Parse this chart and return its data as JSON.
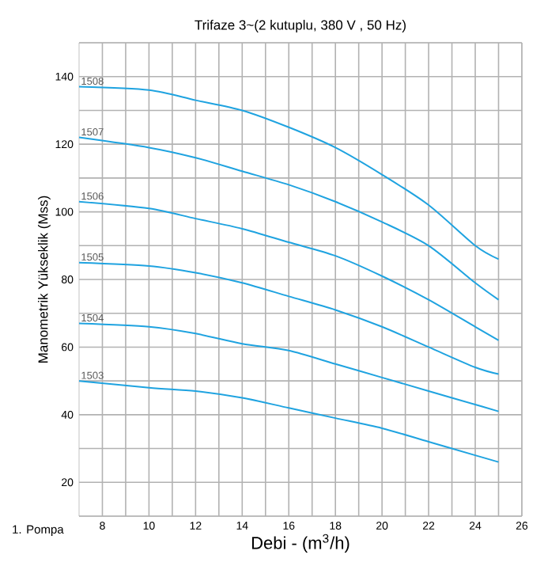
{
  "chart_data": {
    "type": "line",
    "title": "Trifaze 3~(2 kutuplu, 380 V , 50 Hz)",
    "xlabel": "Debi - (m$^{3}$/h)",
    "ylabel": "Manometrik Yükseklik (Mss)",
    "annotations": [
      "1. Pompa"
    ],
    "x": [
      7,
      10,
      12,
      14,
      16,
      18,
      20,
      22,
      24,
      25
    ],
    "series": [
      {
        "name": "1508",
        "color": "#1fa3e0",
        "values": [
          137,
          136,
          133,
          130,
          125,
          119,
          111,
          102,
          90,
          86
        ]
      },
      {
        "name": "1507",
        "color": "#1fa3e0",
        "values": [
          122,
          119,
          116,
          112,
          108,
          103,
          97,
          90,
          79,
          74
        ]
      },
      {
        "name": "1506",
        "color": "#1fa3e0",
        "values": [
          103,
          101,
          98,
          95,
          91,
          87,
          81,
          74,
          66,
          62
        ]
      },
      {
        "name": "1505",
        "color": "#1fa3e0",
        "values": [
          85,
          84,
          82,
          79,
          75,
          71,
          66,
          60,
          54,
          52
        ]
      },
      {
        "name": "1504",
        "color": "#1fa3e0",
        "values": [
          67,
          66,
          64,
          61,
          59,
          55,
          51,
          47,
          43,
          41
        ]
      },
      {
        "name": "1503",
        "color": "#1fa3e0",
        "values": [
          50,
          48,
          47,
          45,
          42,
          39,
          36,
          32,
          28,
          26
        ]
      }
    ],
    "xlim": [
      7,
      26
    ],
    "ylim": [
      10,
      150
    ],
    "xticks": [
      8,
      {
        "value": 9,
        "label": null
      },
      10,
      {
        "value": 11,
        "label": null
      },
      12,
      {
        "value": 13,
        "label": null
      },
      14,
      {
        "value": 15,
        "label": null
      },
      16,
      {
        "value": 17,
        "label": null
      },
      18,
      {
        "value": 19,
        "label": null
      },
      20,
      {
        "value": 21,
        "label": null
      },
      22,
      {
        "value": 23,
        "label": null
      },
      24,
      {
        "value": 25,
        "label": null
      },
      26
    ],
    "yticks": [
      {
        "value": 10,
        "label": null
      },
      20,
      {
        "value": 30,
        "label": null
      },
      40,
      {
        "value": 50,
        "label": null
      },
      60,
      {
        "value": 70,
        "label": null
      },
      80,
      {
        "value": 90,
        "label": null
      },
      100,
      {
        "value": 110,
        "label": null
      },
      120,
      {
        "value": 130,
        "label": null
      },
      140,
      {
        "value": 150,
        "label": null
      }
    ],
    "grid": true,
    "legend": false,
    "marker": "none",
    "line_style": "solid"
  }
}
